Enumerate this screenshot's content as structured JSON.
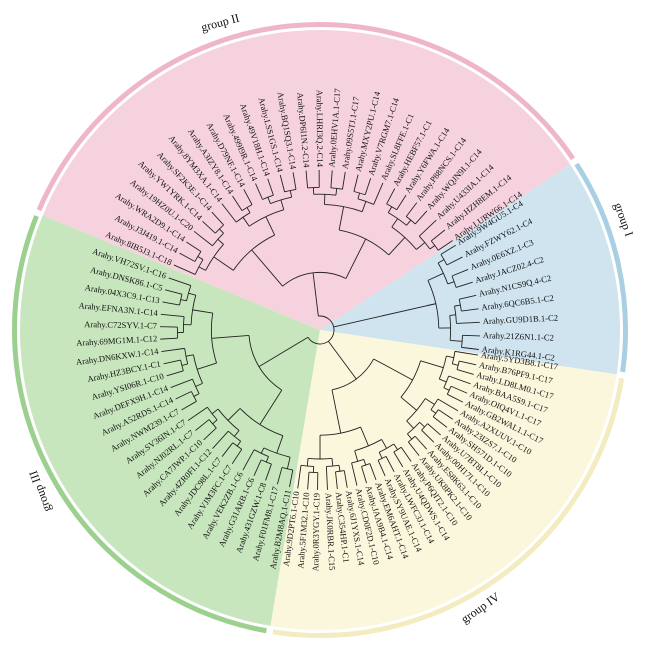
{
  "groups": [
    {
      "label": "group I",
      "color": "#a8d0e2",
      "bg": "#cfe4ef",
      "leaves": [
        "Arahy.K1RG44.1-C2",
        "Arahy.21Z6N1.1-C2",
        "Arahy.GU9D1B.1-C2",
        "Arahy.6QC6B5.1-C2",
        "Arahy.N1CS9Q.4-C2",
        "Arahy.JACZ02.4-C2",
        "Arahy.0E6XZ.1-C3",
        "Arahy.FZWY62.1-C4",
        "Arahy.9W4GU5.1-C4"
      ]
    },
    {
      "label": "group II",
      "color": "#efb6c8",
      "bg": "#f6d2de",
      "leaves": [
        "Arahy.LURW66.1-C14",
        "Arahy.HZH8EM.1-C14",
        "Arahy.U433IA.1-C14",
        "Arahy.WQJN9I.1-C14",
        "Arahy.P88NCS.1-C14",
        "Arahy.Y6FWA.1-C14",
        "Arahy.HEBF57.1-C1",
        "Arahy.SL8FFE.1-C1",
        "Arahy.V7RGM7.1-C14",
        "Arahy.MXY2PU.1-C14",
        "Arahy.09S5TJ.1-C17",
        "Arahy.0EHV1A.1-C17",
        "Arahy.LHRI3Q.2-C14",
        "Arahy.DP6I1N.2-C14",
        "Arahy.BQ1SQ3.1-C14",
        "Arahy.LSS1GS.1-C14",
        "Arahy.49V18H.1-C14",
        "Arahy.499I9R.1-C14",
        "Arahy.D79NF.1-C14",
        "Arahy.A3IZY8.1-C14",
        "Arahy.8YM3XA.1-C14",
        "Arahy.SF2K3E.1-C14",
        "Arahy.YW1YRK.1-C14",
        "Arahy.19HZ0U.1-C20",
        "Arahy.WRA2D9.1-C14",
        "Arahy.J3J419.1-C14",
        "Arahy.8IB5J3.1-C18"
      ]
    },
    {
      "label": "group III",
      "color": "#9bd08e",
      "bg": "#c8e6bd",
      "leaves": [
        "Arahy.VH72SV.1-C16",
        "Arahy.DNSK86.1-C5",
        "Arahy.04X3C9.1-C13",
        "Arahy.EFNA3N.1-C14",
        "Arahy.C72SYV.1-C7",
        "Arahy.69MG1M.1-C12",
        "Arahy.DN6KXW.1-C14",
        "Arahy.HZ3BCY.1-C1",
        "Arahy.YSI06R.1-C10",
        "Arahy.DEFX9H.1-C14",
        "Arahy.A52RDS.1-C14",
        "Arahy.NWM239.1-C7",
        "Arahy.SV36IN.1-C7",
        "Arahy.NJ02RL.1-C7",
        "Arahy.CA7JWP.1-C10",
        "Arahy.4ZR0FI.1-C12",
        "Arahy.JDC98L.1-C7",
        "Arahy.VJM3FC.1-C7",
        "Arahy.VEK2ZB.1-C6",
        "Arahy.G31ARB.1-C6",
        "Arahy.431GZW.1-C8",
        "Arahy.F01FM8.1-C17",
        "Arahy.B2M8AQ.1-C11"
      ]
    },
    {
      "label": "group IV",
      "color": "#f3ecc0",
      "bg": "#fbf7dc",
      "leaves": [
        "Arahy.9D2PT6.1-C10",
        "Arahy.5F1M32.1-C10",
        "Arahy.0R3YGY.1-C19",
        "Arahy.JK0RBR.1-C15",
        "Arahy.C354HP.1-C1",
        "Arahy.6J1YXS.1-C14",
        "Arahy.CD0F2D.1-C10",
        "Arahy.JAA9B4.1-C14",
        "Arahy.EM6AHT.1-C14",
        "Arahy.SY9UAE.1-C14",
        "Arahy.LWFC3J.1-C14",
        "Arahy.U4QDWS.1-C14",
        "Arahy.P6QIT2.1-C10",
        "Arahy.UK8PK2.1-C10",
        "Arahy.ES8K63.1-C10",
        "Arahy.00H17I.1-C10",
        "Arahy.U7BT8I.1-C10",
        "Arahy.SH571D.1-C10",
        "Arahy.23IZS7.1-C10",
        "Arahy.A2XUUV.1-C10",
        "Arahy.GB2WAL1.1-C17",
        "Arahy.OIQ4V1.1-C17",
        "Arahy.BAA5S9.1-C17",
        "Arahy.LD8LM0.1-C17",
        "Arahy.B76PF9.1-C17",
        "Arahy.5YD3B8.1-C17"
      ]
    }
  ]
}
